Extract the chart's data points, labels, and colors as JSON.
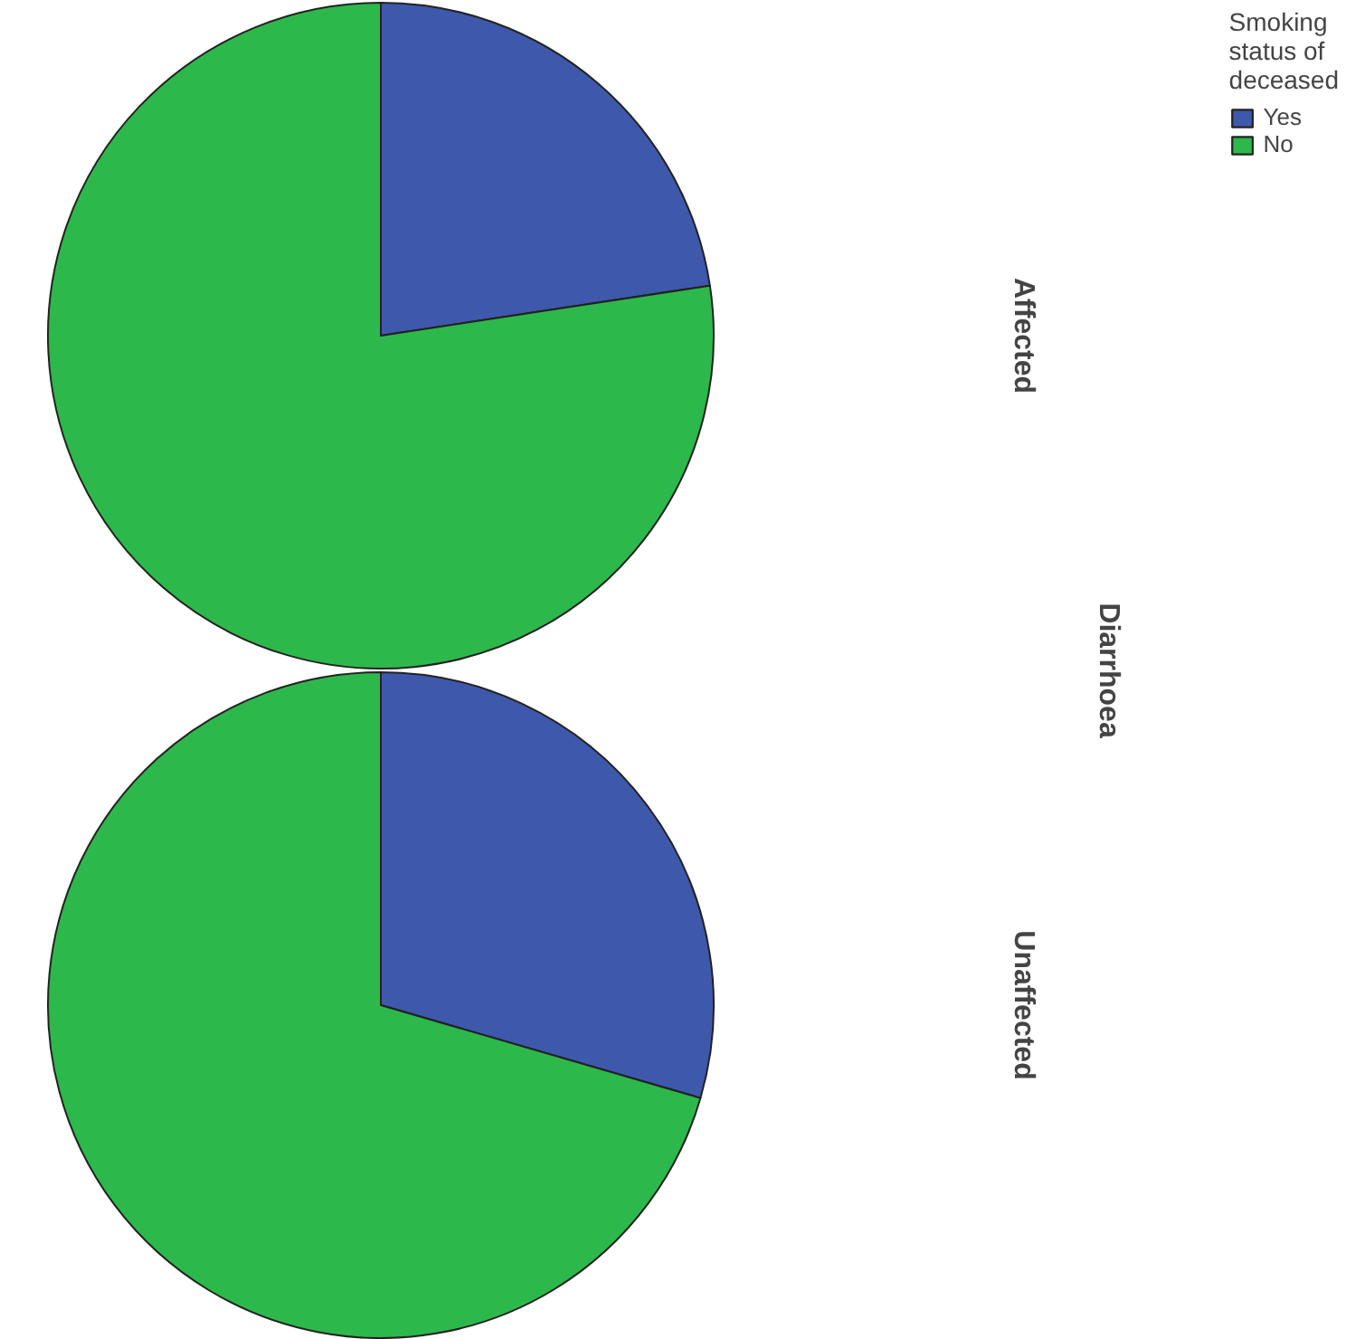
{
  "chart_data": [
    {
      "type": "pie",
      "title": "Affected",
      "ylabel": "Diarrhoea",
      "legend": "top right",
      "legend_title": "Smoking status of deceased",
      "categories": [
        "Yes",
        "No"
      ],
      "values": [
        22.6,
        77.4
      ],
      "colors": [
        "#3e58ac",
        "#2db84b"
      ]
    },
    {
      "type": "pie",
      "title": "Unaffected",
      "categories": [
        null,
        null
      ],
      "values": [
        29.5,
        70.5
      ],
      "colors": [
        "#3e58ac",
        "#2db84b"
      ]
    }
  ]
}
